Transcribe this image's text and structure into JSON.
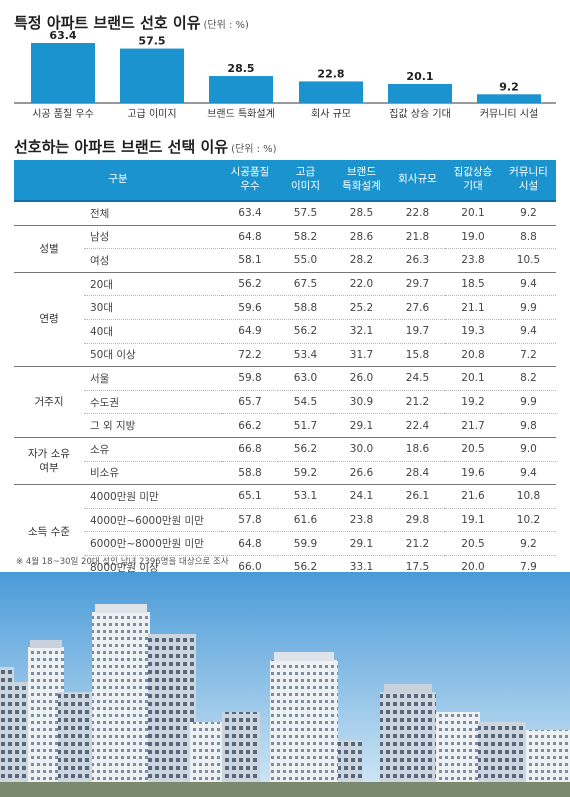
{
  "heading1": {
    "title": "특정 아파트 브랜드 선호 이유",
    "unit": "(단위 : %)"
  },
  "chart_data": {
    "type": "bar",
    "title": "특정 아파트 브랜드 선호 이유",
    "unit": "(단위 : %)",
    "categories": [
      "시공 품질 우수",
      "고급 이미지",
      "브랜드 특화설계",
      "회사 규모",
      "집값 상승 기대",
      "커뮤니티 시설"
    ],
    "values": [
      63.4,
      57.5,
      28.5,
      22.8,
      20.1,
      9.2
    ],
    "value_labels": [
      "63.4",
      "57.5",
      "28.5",
      "22.8",
      "20.1",
      "9.2"
    ],
    "ylim": [
      0,
      70
    ],
    "grid": false,
    "bar_color": "#1a93cf"
  },
  "heading2": {
    "title": "선호하는 아파트 브랜드 선택 이유",
    "unit": "(단위 : %)"
  },
  "table": {
    "header": [
      "구분",
      "시공품질\n우수",
      "고급\n이미지",
      "브랜드\n특화설계",
      "회사규모",
      "집값상승\n기대",
      "커뮤니티\n시설"
    ],
    "groups": [
      {
        "label": "",
        "rows": [
          {
            "label": "전체",
            "values": [
              "63.4",
              "57.5",
              "28.5",
              "22.8",
              "20.1",
              "9.2"
            ]
          }
        ]
      },
      {
        "label": "성별",
        "rows": [
          {
            "label": "남성",
            "values": [
              "64.8",
              "58.2",
              "28.6",
              "21.8",
              "19.0",
              "8.8"
            ]
          },
          {
            "label": "여성",
            "values": [
              "58.1",
              "55.0",
              "28.2",
              "26.3",
              "23.8",
              "10.5"
            ]
          }
        ]
      },
      {
        "label": "연령",
        "rows": [
          {
            "label": "20대",
            "values": [
              "56.2",
              "67.5",
              "22.0",
              "29.7",
              "18.5",
              "9.4"
            ]
          },
          {
            "label": "30대",
            "values": [
              "59.6",
              "58.8",
              "25.2",
              "27.6",
              "21.1",
              "9.9"
            ]
          },
          {
            "label": "40대",
            "values": [
              "64.9",
              "56.2",
              "32.1",
              "19.7",
              "19.3",
              "9.4"
            ]
          },
          {
            "label": "50대 이상",
            "values": [
              "72.2",
              "53.4",
              "31.7",
              "15.8",
              "20.8",
              "7.2"
            ]
          }
        ]
      },
      {
        "label": "거주지",
        "rows": [
          {
            "label": "서울",
            "values": [
              "59.8",
              "63.0",
              "26.0",
              "24.5",
              "20.1",
              "8.2"
            ]
          },
          {
            "label": "수도권",
            "values": [
              "65.7",
              "54.5",
              "30.9",
              "21.2",
              "19.2",
              "9.9"
            ]
          },
          {
            "label": "그 외 지방",
            "values": [
              "66.2",
              "51.7",
              "29.1",
              "22.4",
              "21.7",
              "9.8"
            ]
          }
        ]
      },
      {
        "label": "자가 소유\n여부",
        "rows": [
          {
            "label": "소유",
            "values": [
              "66.8",
              "56.2",
              "30.0",
              "18.6",
              "20.5",
              "9.0"
            ]
          },
          {
            "label": "비소유",
            "values": [
              "58.8",
              "59.2",
              "26.6",
              "28.4",
              "19.6",
              "9.4"
            ]
          }
        ]
      },
      {
        "label": "소득 수준",
        "rows": [
          {
            "label": "4000만원 미만",
            "values": [
              "65.1",
              "53.1",
              "24.1",
              "26.1",
              "21.6",
              "10.8"
            ]
          },
          {
            "label": "4000만~6000만원 미만",
            "values": [
              "57.8",
              "61.6",
              "23.8",
              "29.8",
              "19.1",
              "10.2"
            ]
          },
          {
            "label": "6000만~8000만원 미만",
            "values": [
              "64.8",
              "59.9",
              "29.1",
              "21.2",
              "20.5",
              "9.2"
            ]
          },
          {
            "label": "8000만원 이상",
            "values": [
              "66.0",
              "56.2",
              "33.1",
              "17.5",
              "20.0",
              "7.9"
            ]
          }
        ]
      }
    ]
  },
  "footnote": "※ 4월 18~30일 20대 성인 남녀 2396명을 대상으로 조사",
  "colors": {
    "accent": "#1a93cf",
    "header_text": "#ffffff",
    "sky_top": "#4a9ad8",
    "sky_bottom": "#d5e9f6"
  },
  "decoration": "apartment-skyline-photo"
}
